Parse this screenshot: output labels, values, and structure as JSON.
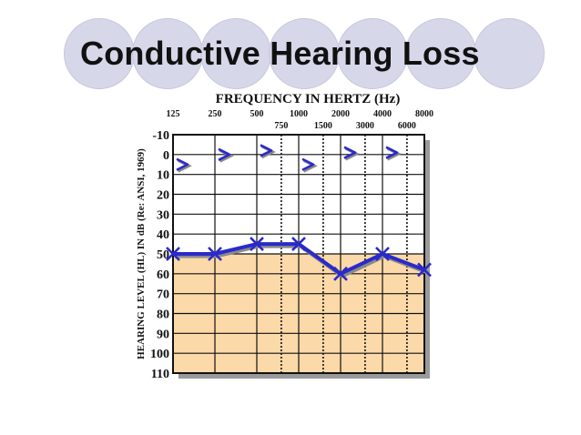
{
  "slide": {
    "title": "Conductive Hearing Loss"
  },
  "chart_data": {
    "type": "line",
    "title": "FREQUENCY IN HERTZ (Hz)",
    "ylabel": "HEARING LEVEL (HL) IN dB (Re: ANSI, 1969)",
    "x_top_labels": [
      "125",
      "250",
      "500",
      "1000",
      "2000",
      "4000",
      "8000"
    ],
    "x_mid_labels": [
      "750",
      "1500",
      "3000",
      "6000"
    ],
    "y_ticks": [
      -10,
      0,
      10,
      20,
      30,
      40,
      50,
      60,
      70,
      80,
      90,
      100,
      110
    ],
    "ylim": [
      -10,
      110
    ],
    "x_scale": "log",
    "y_inverted": true,
    "series": [
      {
        "marker": "x",
        "x": [
          125,
          250,
          500,
          1000,
          2000,
          4000,
          8000
        ],
        "y": [
          50,
          50,
          45,
          45,
          60,
          50,
          58
        ]
      },
      {
        "marker": ">",
        "x": [
          125,
          250,
          500,
          1000,
          2000,
          4000
        ],
        "y": [
          5,
          0,
          -2,
          5,
          -1,
          -1
        ]
      }
    ],
    "shaded_region": {
      "y_from": 50,
      "y_to": 110,
      "color": "#fcd9a8"
    },
    "colors": {
      "line": "#2a2acb",
      "grid": "#111111",
      "dashed": "#111111"
    }
  }
}
